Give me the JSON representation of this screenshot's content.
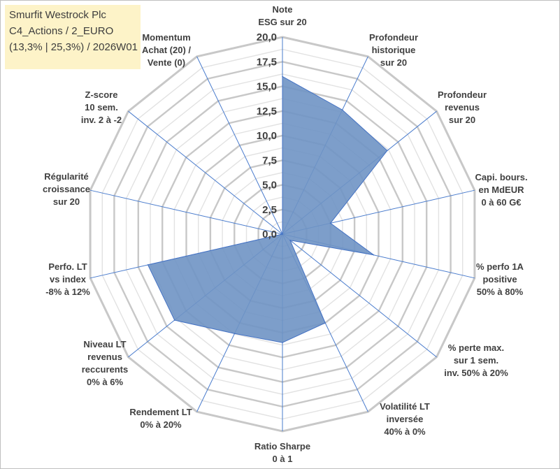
{
  "title": {
    "line1": "Smurfit Westrock Plc",
    "line2": "C4_Actions / 2_EURO",
    "line3": "(13,3% | 25,3%) / 2026W01"
  },
  "colors": {
    "fill": "#6f93c4",
    "stroke": "#4472c4",
    "grid": "#c8c8c8",
    "spoke": "#4a7ccd",
    "title_bg": "#fdf3c8"
  },
  "chart_data": {
    "type": "radar",
    "title": "Smurfit Westrock Plc",
    "rlim": [
      0,
      20
    ],
    "ticks": [
      "0,0",
      "2,5",
      "5,0",
      "7,5",
      "10,0",
      "12,5",
      "15,0",
      "17,5",
      "20,0"
    ],
    "axes": [
      [
        "Note",
        "ESG sur 20"
      ],
      [
        "Profondeur",
        "historique",
        "sur 20"
      ],
      [
        "Profondeur",
        "revenus",
        "sur 20"
      ],
      [
        "Capi. bours.",
        "en MdEUR",
        "0 à 60 G€"
      ],
      [
        "% perfo 1A",
        "positive",
        "50% à 80%"
      ],
      [
        "% perte max.",
        "sur 1 sem.",
        "inv. 50% à 20%"
      ],
      [
        "Volatilité LT",
        "inversée",
        "40% à 0%"
      ],
      [
        "Ratio Sharpe",
        "0 à 1"
      ],
      [
        "Rendement LT",
        "0% à 20%"
      ],
      [
        "Niveau LT",
        "revenus",
        "reccurents",
        "0% à 6%"
      ],
      [
        "Perfo. LT",
        "vs index",
        "-8% à 12%"
      ],
      [
        "Régularité",
        "croissance",
        "sur 20"
      ],
      [
        "Z-score",
        "10 sem.",
        "inv. 2 à -2"
      ],
      [
        "Momentum",
        "Achat (20) /",
        "Vente (0)"
      ]
    ],
    "series": [
      {
        "name": "Smurfit Westrock Plc",
        "values": [
          16.0,
          14.0,
          13.6,
          5.0,
          9.5,
          1.0,
          10.0,
          11.0,
          11.2,
          14.0,
          14.0,
          0.0,
          0.0,
          0.0
        ]
      }
    ]
  }
}
